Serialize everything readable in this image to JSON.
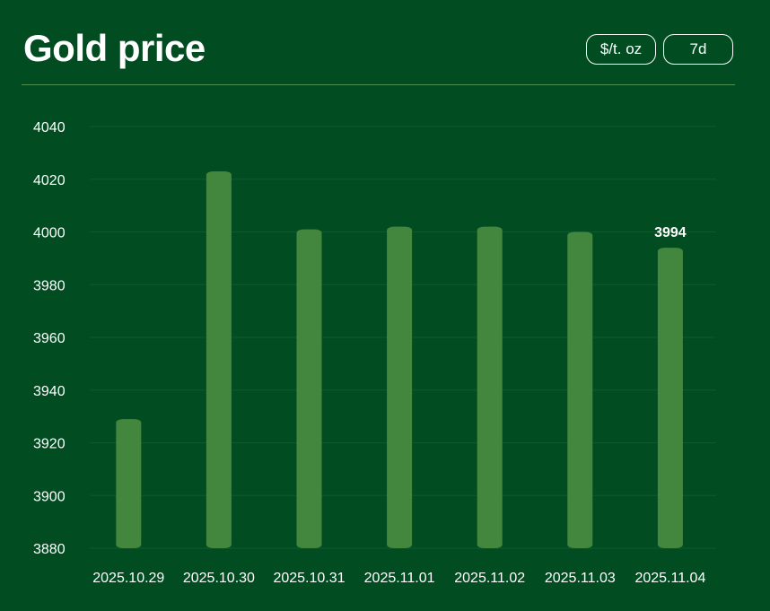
{
  "header": {
    "title": "Gold price",
    "unit_label": "$/t. oz",
    "range_label": "7d"
  },
  "colors": {
    "background": "#024c22",
    "bar": "#43873f",
    "grid": "#0e5a2c",
    "divider": "#4f8f55"
  },
  "chart_data": {
    "type": "bar",
    "title": "Gold price",
    "xlabel": "",
    "ylabel": "",
    "categories": [
      "2025.10.29",
      "2025.10.30",
      "2025.10.31",
      "2025.11.01",
      "2025.11.02",
      "2025.11.03",
      "2025.11.04"
    ],
    "values": [
      3929,
      4023,
      4001,
      4002,
      4002,
      4000,
      3994
    ],
    "ylim": [
      3880,
      4040
    ],
    "yticks": [
      3880,
      3900,
      3920,
      3940,
      3960,
      3980,
      4000,
      4020,
      4040
    ],
    "grid": true,
    "highlight": {
      "index": 6,
      "label": "3994"
    }
  }
}
